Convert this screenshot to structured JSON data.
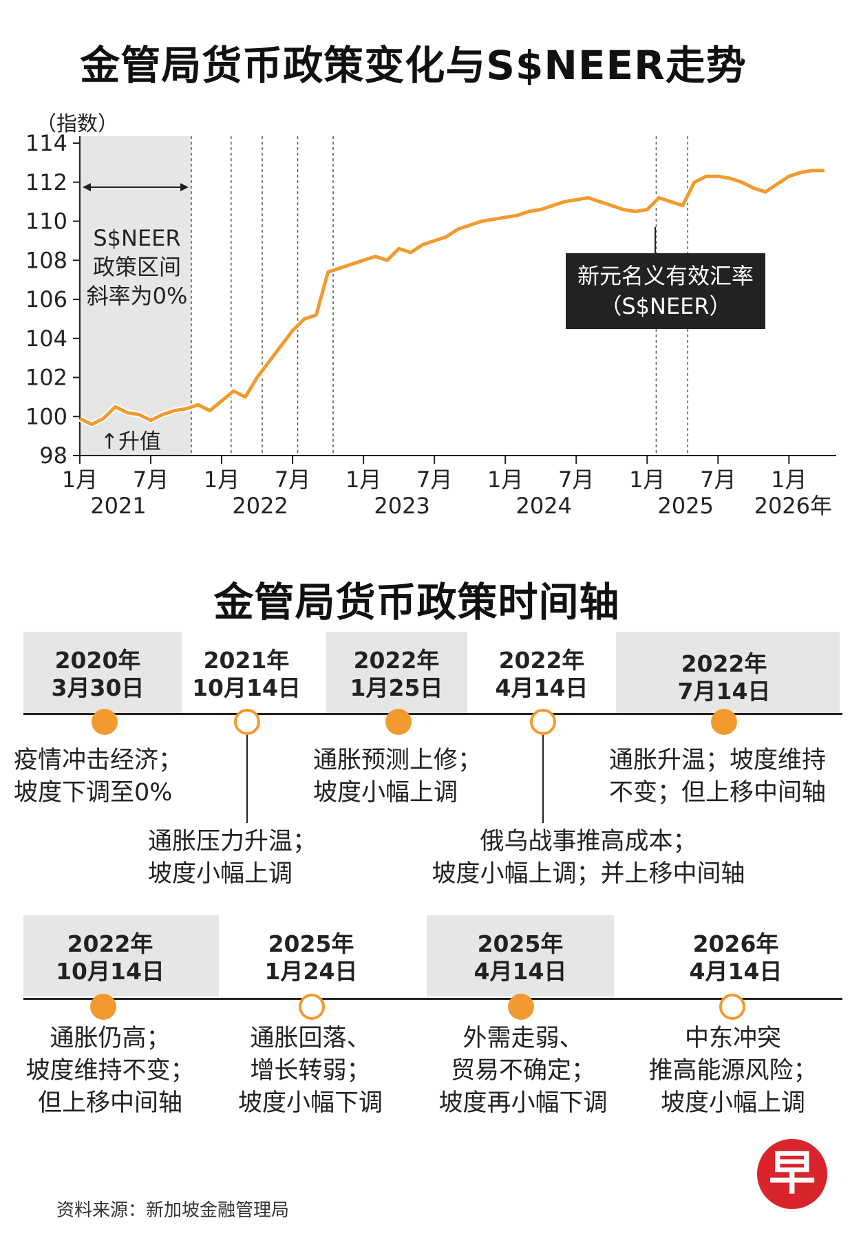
{
  "title": "金管局货币政策变化与S$NEER走势",
  "chart_data": {
    "type": "line",
    "title": "金管局货币政策变化与S$NEER走势",
    "ylabel": "（指数）",
    "ylim": [
      98,
      114
    ],
    "yticks": [
      98,
      100,
      102,
      104,
      106,
      108,
      110,
      112,
      114
    ],
    "xlim": [
      "2021-01",
      "2026-05"
    ],
    "x_ticks": [
      {
        "month": "1月",
        "year": "2021",
        "date": "2021-01"
      },
      {
        "month": "7月",
        "year": "",
        "date": "2021-07"
      },
      {
        "month": "1月",
        "year": "2022",
        "date": "2022-01"
      },
      {
        "month": "7月",
        "year": "",
        "date": "2022-07"
      },
      {
        "month": "1月",
        "year": "2023",
        "date": "2023-01"
      },
      {
        "month": "7月",
        "year": "",
        "date": "2023-07"
      },
      {
        "month": "1月",
        "year": "2024",
        "date": "2024-01"
      },
      {
        "month": "7月",
        "year": "",
        "date": "2024-07"
      },
      {
        "month": "1月",
        "year": "2025",
        "date": "2025-01"
      },
      {
        "month": "7月",
        "year": "",
        "date": "2025-07"
      },
      {
        "month": "1月",
        "year": "2026年",
        "date": "2026-01"
      }
    ],
    "series": [
      {
        "name": "新元名义有效汇率（S$NEER）",
        "color": "#f29a2e",
        "points": [
          [
            "2021-01",
            99.9
          ],
          [
            "2021-02",
            99.6
          ],
          [
            "2021-03",
            99.9
          ],
          [
            "2021-04",
            100.5
          ],
          [
            "2021-05",
            100.2
          ],
          [
            "2021-06",
            100.1
          ],
          [
            "2021-07",
            99.8
          ],
          [
            "2021-08",
            100.1
          ],
          [
            "2021-09",
            100.3
          ],
          [
            "2021-10",
            100.4
          ],
          [
            "2021-11",
            100.6
          ],
          [
            "2021-12",
            100.3
          ],
          [
            "2022-01",
            100.8
          ],
          [
            "2022-02",
            101.3
          ],
          [
            "2022-03",
            101.0
          ],
          [
            "2022-04",
            102.0
          ],
          [
            "2022-05",
            102.8
          ],
          [
            "2022-06",
            103.6
          ],
          [
            "2022-07",
            104.4
          ],
          [
            "2022-08",
            105.0
          ],
          [
            "2022-09",
            105.2
          ],
          [
            "2022-10",
            107.4
          ],
          [
            "2022-11",
            107.6
          ],
          [
            "2022-12",
            107.8
          ],
          [
            "2023-01",
            108.0
          ],
          [
            "2023-02",
            108.2
          ],
          [
            "2023-03",
            108.0
          ],
          [
            "2023-04",
            108.6
          ],
          [
            "2023-05",
            108.4
          ],
          [
            "2023-06",
            108.8
          ],
          [
            "2023-07",
            109.0
          ],
          [
            "2023-08",
            109.2
          ],
          [
            "2023-09",
            109.6
          ],
          [
            "2023-10",
            109.8
          ],
          [
            "2023-11",
            110.0
          ],
          [
            "2023-12",
            110.1
          ],
          [
            "2024-01",
            110.2
          ],
          [
            "2024-02",
            110.3
          ],
          [
            "2024-03",
            110.5
          ],
          [
            "2024-04",
            110.6
          ],
          [
            "2024-05",
            110.8
          ],
          [
            "2024-06",
            111.0
          ],
          [
            "2024-07",
            111.1
          ],
          [
            "2024-08",
            111.2
          ],
          [
            "2024-09",
            111.0
          ],
          [
            "2024-10",
            110.8
          ],
          [
            "2024-11",
            110.6
          ],
          [
            "2024-12",
            110.5
          ],
          [
            "2025-01",
            110.6
          ],
          [
            "2025-02",
            111.2
          ],
          [
            "2025-03",
            111.0
          ],
          [
            "2025-04",
            110.8
          ],
          [
            "2025-05",
            112.0
          ],
          [
            "2025-06",
            112.3
          ],
          [
            "2025-07",
            112.3
          ],
          [
            "2025-08",
            112.2
          ],
          [
            "2025-09",
            112.0
          ],
          [
            "2025-10",
            111.7
          ],
          [
            "2025-11",
            111.5
          ],
          [
            "2025-12",
            111.9
          ],
          [
            "2026-01",
            112.3
          ],
          [
            "2026-02",
            112.5
          ],
          [
            "2026-03",
            112.6
          ],
          [
            "2026-04",
            112.6
          ]
        ]
      }
    ],
    "policy_lines": [
      "2021-10-14",
      "2022-01-25",
      "2022-04-14",
      "2022-07-14",
      "2022-10-14",
      "2025-01-24",
      "2025-04-14"
    ],
    "shaded_range": [
      "2021-01",
      "2021-10-14"
    ],
    "annotations": {
      "zero_slope": [
        "S$NEER",
        "政策区间",
        "斜率为0%"
      ],
      "appreciation": "↑升值",
      "series_label": [
        "新元名义有效汇率",
        "（S$NEER）"
      ]
    },
    "grid": false,
    "legend": "none"
  },
  "timeline": {
    "title": "金管局货币政策时间轴",
    "row1": [
      {
        "year": "2020年",
        "date": "3月30日",
        "filled": true,
        "desc": [
          "疫情冲击经济；",
          "坡度下调至0%"
        ],
        "band": true
      },
      {
        "year": "2021年",
        "date": "10月14日",
        "filled": false,
        "desc": [
          "通胀压力升温；",
          "坡度小幅上调"
        ],
        "band": false
      },
      {
        "year": "2022年",
        "date": "1月25日",
        "filled": true,
        "desc": [
          "通胀预测上修；",
          "坡度小幅上调"
        ],
        "band": true
      },
      {
        "year": "2022年",
        "date": "4月14日",
        "filled": false,
        "desc": [
          "俄乌战事推高成本；",
          "坡度小幅上调；并上移中间轴"
        ],
        "band": false
      },
      {
        "year": "2022年",
        "date": "7月14日",
        "filled": true,
        "desc": [
          "通胀升温；坡度维持",
          "不变；但上移中间轴"
        ],
        "band": true
      }
    ],
    "row2": [
      {
        "year": "2022年",
        "date": "10月14日",
        "filled": true,
        "desc": [
          "通胀仍高；",
          "坡度维持不变；",
          "但上移中间轴"
        ],
        "band": true
      },
      {
        "year": "2025年",
        "date": "1月24日",
        "filled": false,
        "desc": [
          "通胀回落、",
          "增长转弱；",
          "坡度小幅下调"
        ],
        "band": false
      },
      {
        "year": "2025年",
        "date": "4月14日",
        "filled": true,
        "desc": [
          "外需走弱、",
          "贸易不确定；",
          "坡度再小幅下调"
        ],
        "band": true
      },
      {
        "year": "2026年",
        "date": "4月14日",
        "filled": false,
        "desc": [
          "中东冲突",
          "推高能源风险；",
          "坡度小幅上调"
        ],
        "band": false
      }
    ]
  },
  "source": "资料来源：新加坡金融管理局",
  "logo": "早",
  "colors": {
    "accent": "#f29a2e",
    "band": "#e6e6e6",
    "label_box": "#222222"
  }
}
